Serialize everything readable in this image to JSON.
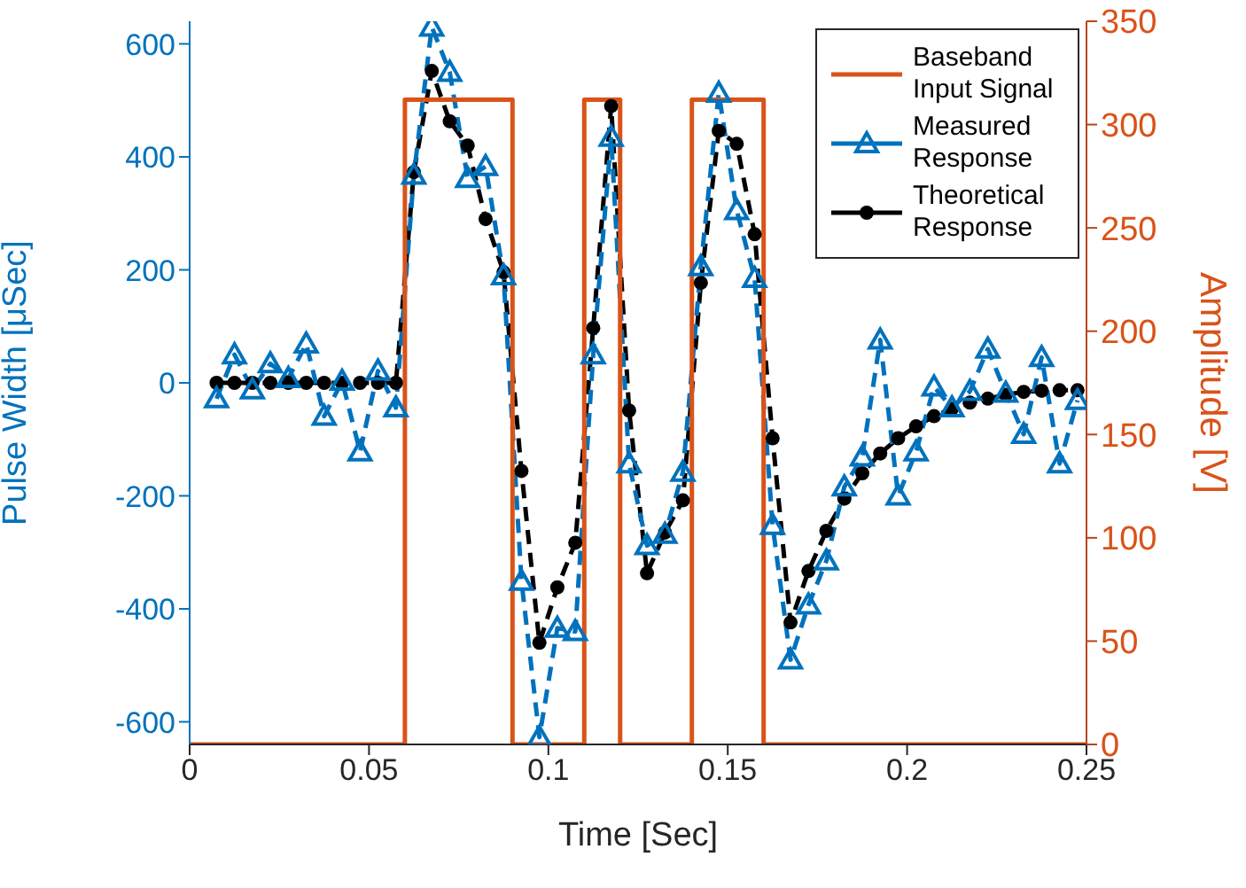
{
  "chart_data": {
    "type": "line",
    "xlabel": "Time [Sec]",
    "ylabel": "Pulse Width [μSec]",
    "y2label": "Amplitude [V]",
    "xlim": [
      0,
      0.25
    ],
    "xticks": [
      0,
      0.05,
      0.1,
      0.15,
      0.2,
      0.25
    ],
    "ylim": [
      -640,
      640
    ],
    "yticks": [
      -600,
      -400,
      -200,
      0,
      200,
      400,
      600
    ],
    "y2lim": [
      0,
      350
    ],
    "y2ticks": [
      0,
      50,
      100,
      150,
      200,
      250,
      300,
      350
    ],
    "legend": "top right",
    "series": [
      {
        "name": "Baseband Input Signal",
        "type": "step",
        "axis": "y2",
        "color": "#d95319",
        "marker": "none",
        "line_style": "solid",
        "x": [
          0,
          0.06,
          0.09,
          0.11,
          0.12,
          0.14,
          0.16,
          0.25
        ],
        "values": [
          0,
          312,
          0,
          312,
          0,
          312,
          0,
          0
        ]
      },
      {
        "name": "Measured Response",
        "type": "line",
        "color": "#0072bd",
        "marker": "triangle",
        "line_style": "dashed",
        "x": [
          0.0075,
          0.0125,
          0.0175,
          0.0225,
          0.0275,
          0.0325,
          0.0375,
          0.0425,
          0.0475,
          0.0525,
          0.0575,
          0.0625,
          0.0675,
          0.0725,
          0.0775,
          0.0825,
          0.0875,
          0.0925,
          0.0975,
          0.1025,
          0.1075,
          0.1125,
          0.1175,
          0.1225,
          0.1275,
          0.1325,
          0.1375,
          0.1425,
          0.1475,
          0.1525,
          0.1575,
          0.1625,
          0.1675,
          0.1725,
          0.1775,
          0.1825,
          0.1875,
          0.1925,
          0.1975,
          0.2025,
          0.2075,
          0.2125,
          0.2175,
          0.2225,
          0.2275,
          0.2325,
          0.2375,
          0.2425,
          0.2475
        ],
        "values": [
          -28,
          50,
          -12,
          34,
          8,
          69,
          -59,
          3,
          -122,
          21,
          -44,
          368,
          630,
          550,
          362,
          383,
          190,
          -351,
          -627,
          -434,
          -440,
          50,
          435,
          -143,
          -288,
          -268,
          -158,
          206,
          513,
          305,
          185,
          -252,
          -490,
          -393,
          -315,
          -184,
          -131,
          76,
          -200,
          -122,
          -7,
          -44,
          -15,
          60,
          -18,
          -91,
          45,
          -143,
          -31
        ]
      },
      {
        "name": "Theoretical Response",
        "type": "line",
        "color": "#000000",
        "marker": "circle",
        "line_style": "dashed",
        "x": [
          0.0075,
          0.0125,
          0.0175,
          0.0225,
          0.0275,
          0.0325,
          0.0375,
          0.0425,
          0.0475,
          0.0525,
          0.0575,
          0.0625,
          0.0675,
          0.0725,
          0.0775,
          0.0825,
          0.0875,
          0.0925,
          0.0975,
          0.1025,
          0.1075,
          0.1125,
          0.1175,
          0.1225,
          0.1275,
          0.1325,
          0.1375,
          0.1425,
          0.1475,
          0.1525,
          0.1575,
          0.1625,
          0.1675,
          0.1725,
          0.1775,
          0.1825,
          0.1875,
          0.1925,
          0.1975,
          0.2025,
          0.2075,
          0.2125,
          0.2175,
          0.2225,
          0.2275,
          0.2325,
          0.2375,
          0.2425,
          0.2475
        ],
        "values": [
          0,
          0,
          0,
          0,
          0,
          0,
          0,
          0,
          0,
          0,
          0,
          373,
          552,
          463,
          420,
          290,
          196,
          -156,
          -460,
          -362,
          -283,
          97,
          490,
          -49,
          -337,
          -265,
          -208,
          177,
          446,
          423,
          263,
          -98,
          -424,
          -333,
          -262,
          -205,
          -160,
          -125,
          -98,
          -77,
          -59,
          -46,
          -35,
          -28,
          -21,
          -16,
          -14,
          -13,
          -13
        ]
      }
    ]
  }
}
